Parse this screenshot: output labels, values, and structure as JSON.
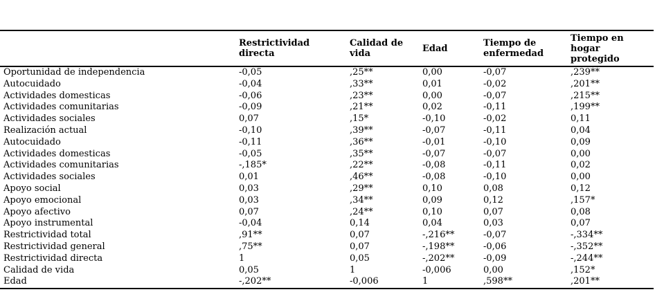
{
  "table": {
    "headers": [
      "Restrictividad directa",
      "Calidad de vida",
      "Edad",
      "Tiempo de enfermedad",
      "Tiempo en hogar protegido"
    ],
    "rows": [
      {
        "label": "Oportunidad de independencia",
        "values": [
          "-0,05",
          ",25**",
          "0,00",
          "-0,07",
          ",239**"
        ]
      },
      {
        "label": "Autocuidado",
        "values": [
          "-0,04",
          ",33**",
          "0,01",
          "-0,02",
          ",201**"
        ]
      },
      {
        "label": "Actividades domesticas",
        "values": [
          "-0,06",
          ",23**",
          "0,00",
          "-0,07",
          ",215**"
        ]
      },
      {
        "label": "Actividades comunitarias",
        "values": [
          "-0,09",
          ",21**",
          "0,02",
          "-0,11",
          ",199**"
        ]
      },
      {
        "label": "Actividades sociales",
        "values": [
          "0,07",
          ",15*",
          "-0,10",
          "-0,02",
          "0,11"
        ]
      },
      {
        "label": "Realización actual",
        "values": [
          "-0,10",
          ",39**",
          "-0,07",
          "-0,11",
          "0,04"
        ]
      },
      {
        "label": "Autocuidado",
        "values": [
          "-0,11",
          ",36**",
          "-0,01",
          "-0,10",
          "0,09"
        ]
      },
      {
        "label": "Actividades domesticas",
        "values": [
          "-0,05",
          ",35**",
          "-0,07",
          "-0,07",
          "0,00"
        ]
      },
      {
        "label": "Actividades comunitarias",
        "values": [
          "-,185*",
          ",22**",
          "-0,08",
          "-0,11",
          "0,02"
        ]
      },
      {
        "label": "Actividades sociales",
        "values": [
          "0,01",
          ",46**",
          "-0,08",
          "-0,10",
          "0,00"
        ]
      },
      {
        "label": "Apoyo social",
        "values": [
          "0,03",
          ",29**",
          "0,10",
          "0,08",
          "0,12"
        ]
      },
      {
        "label": "Apoyo emocional",
        "values": [
          "0,03",
          ",34**",
          "0,09",
          "0,12",
          ",157*"
        ]
      },
      {
        "label": "Apoyo afectivo",
        "values": [
          "0,07",
          ",24**",
          "0,10",
          "0,07",
          "0,08"
        ]
      },
      {
        "label": "Apoyo instrumental",
        "values": [
          "-0,04",
          "0,14",
          "0,04",
          "0,03",
          "0,07"
        ]
      },
      {
        "label": "Restrictividad total",
        "values": [
          ",91**",
          "0,07",
          "-,216**",
          "-0,07",
          "-,334**"
        ]
      },
      {
        "label": "Restrictividad general",
        "values": [
          ",75**",
          "0,07",
          "-,198**",
          "-0,06",
          "-,352**"
        ]
      },
      {
        "label": "Restrictividad directa",
        "values": [
          "1",
          "0,05",
          "-,202**",
          "-0,09",
          "-,244**"
        ]
      },
      {
        "label": "Calidad de vida",
        "values": [
          "0,05",
          "1",
          "-0,006",
          "0,00",
          ",152*"
        ]
      },
      {
        "label": "Edad",
        "values": [
          "-,202**",
          "-0,006",
          "1",
          ",598**",
          ",201**"
        ]
      }
    ]
  }
}
